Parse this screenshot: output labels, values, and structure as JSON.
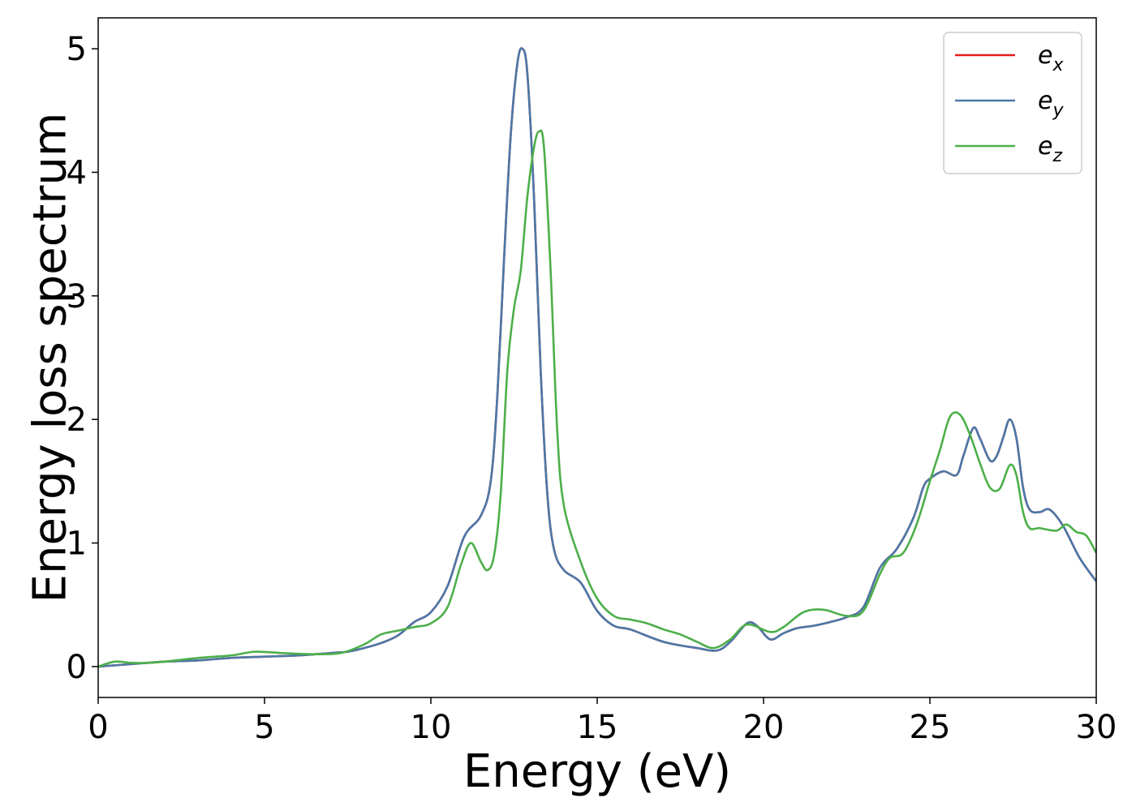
{
  "chart_data": {
    "type": "line",
    "title": "",
    "xlabel": "Energy (eV)",
    "ylabel": "Energy loss spectrum",
    "xlim": [
      0,
      30
    ],
    "ylim": [
      -0.25,
      5.25
    ],
    "xticks": [
      0,
      5,
      10,
      15,
      20,
      25,
      30
    ],
    "yticks": [
      0,
      1,
      2,
      3,
      4,
      5
    ],
    "grid": false,
    "legend_position": "top-right",
    "series": [
      {
        "name": "e_x",
        "legend_base": "e",
        "legend_sub": "x",
        "color": "#e41a1c",
        "points": [
          [
            0,
            0.0
          ],
          [
            1,
            0.02
          ],
          [
            2,
            0.04
          ],
          [
            3,
            0.05
          ],
          [
            4,
            0.07
          ],
          [
            5,
            0.08
          ],
          [
            6,
            0.09
          ],
          [
            7,
            0.11
          ],
          [
            7.5,
            0.12
          ],
          [
            8,
            0.15
          ],
          [
            8.5,
            0.19
          ],
          [
            9,
            0.25
          ],
          [
            9.5,
            0.36
          ],
          [
            10,
            0.44
          ],
          [
            10.5,
            0.65
          ],
          [
            11,
            1.05
          ],
          [
            11.5,
            1.22
          ],
          [
            11.8,
            1.5
          ],
          [
            12.0,
            2.2
          ],
          [
            12.2,
            3.3
          ],
          [
            12.4,
            4.3
          ],
          [
            12.6,
            4.88
          ],
          [
            12.75,
            5.0
          ],
          [
            12.9,
            4.8
          ],
          [
            13.1,
            3.8
          ],
          [
            13.3,
            2.4
          ],
          [
            13.5,
            1.4
          ],
          [
            13.7,
            0.95
          ],
          [
            14,
            0.78
          ],
          [
            14.5,
            0.68
          ],
          [
            15,
            0.45
          ],
          [
            15.5,
            0.33
          ],
          [
            16,
            0.3
          ],
          [
            17,
            0.2
          ],
          [
            18,
            0.15
          ],
          [
            18.6,
            0.13
          ],
          [
            19,
            0.2
          ],
          [
            19.5,
            0.35
          ],
          [
            19.8,
            0.33
          ],
          [
            20.2,
            0.22
          ],
          [
            20.6,
            0.27
          ],
          [
            21,
            0.31
          ],
          [
            21.5,
            0.33
          ],
          [
            22,
            0.36
          ],
          [
            22.5,
            0.4
          ],
          [
            23,
            0.48
          ],
          [
            23.5,
            0.8
          ],
          [
            24,
            0.95
          ],
          [
            24.5,
            1.2
          ],
          [
            24.8,
            1.45
          ],
          [
            25,
            1.52
          ],
          [
            25.4,
            1.58
          ],
          [
            25.8,
            1.55
          ],
          [
            26.0,
            1.7
          ],
          [
            26.3,
            1.93
          ],
          [
            26.5,
            1.85
          ],
          [
            26.8,
            1.67
          ],
          [
            27.0,
            1.7
          ],
          [
            27.2,
            1.85
          ],
          [
            27.4,
            2.0
          ],
          [
            27.6,
            1.85
          ],
          [
            27.8,
            1.45
          ],
          [
            28.0,
            1.27
          ],
          [
            28.3,
            1.25
          ],
          [
            28.6,
            1.27
          ],
          [
            29,
            1.14
          ],
          [
            29.5,
            0.88
          ],
          [
            30,
            0.69
          ]
        ]
      },
      {
        "name": "e_y",
        "legend_base": "e",
        "legend_sub": "y",
        "color": "#4a78a8",
        "points": [
          [
            0,
            0.0
          ],
          [
            1,
            0.02
          ],
          [
            2,
            0.04
          ],
          [
            3,
            0.05
          ],
          [
            4,
            0.07
          ],
          [
            5,
            0.08
          ],
          [
            6,
            0.09
          ],
          [
            7,
            0.11
          ],
          [
            7.5,
            0.12
          ],
          [
            8,
            0.15
          ],
          [
            8.5,
            0.19
          ],
          [
            9,
            0.25
          ],
          [
            9.5,
            0.36
          ],
          [
            10,
            0.44
          ],
          [
            10.5,
            0.65
          ],
          [
            11,
            1.05
          ],
          [
            11.5,
            1.22
          ],
          [
            11.8,
            1.5
          ],
          [
            12.0,
            2.2
          ],
          [
            12.2,
            3.3
          ],
          [
            12.4,
            4.3
          ],
          [
            12.6,
            4.88
          ],
          [
            12.75,
            5.0
          ],
          [
            12.9,
            4.8
          ],
          [
            13.1,
            3.8
          ],
          [
            13.3,
            2.4
          ],
          [
            13.5,
            1.4
          ],
          [
            13.7,
            0.95
          ],
          [
            14,
            0.78
          ],
          [
            14.5,
            0.68
          ],
          [
            15,
            0.45
          ],
          [
            15.5,
            0.33
          ],
          [
            16,
            0.3
          ],
          [
            17,
            0.2
          ],
          [
            18,
            0.15
          ],
          [
            18.6,
            0.13
          ],
          [
            19,
            0.2
          ],
          [
            19.5,
            0.35
          ],
          [
            19.8,
            0.33
          ],
          [
            20.2,
            0.22
          ],
          [
            20.6,
            0.27
          ],
          [
            21,
            0.31
          ],
          [
            21.5,
            0.33
          ],
          [
            22,
            0.36
          ],
          [
            22.5,
            0.4
          ],
          [
            23,
            0.48
          ],
          [
            23.5,
            0.8
          ],
          [
            24,
            0.95
          ],
          [
            24.5,
            1.2
          ],
          [
            24.8,
            1.45
          ],
          [
            25,
            1.52
          ],
          [
            25.4,
            1.58
          ],
          [
            25.8,
            1.55
          ],
          [
            26.0,
            1.7
          ],
          [
            26.3,
            1.93
          ],
          [
            26.5,
            1.85
          ],
          [
            26.8,
            1.67
          ],
          [
            27.0,
            1.7
          ],
          [
            27.2,
            1.85
          ],
          [
            27.4,
            2.0
          ],
          [
            27.6,
            1.85
          ],
          [
            27.8,
            1.45
          ],
          [
            28.0,
            1.27
          ],
          [
            28.3,
            1.25
          ],
          [
            28.6,
            1.27
          ],
          [
            29,
            1.14
          ],
          [
            29.5,
            0.88
          ],
          [
            30,
            0.69
          ]
        ]
      },
      {
        "name": "e_z",
        "legend_base": "e",
        "legend_sub": "z",
        "color": "#4daf4a",
        "points": [
          [
            0,
            0.0
          ],
          [
            0.5,
            0.04
          ],
          [
            1,
            0.03
          ],
          [
            1.5,
            0.03
          ],
          [
            2,
            0.04
          ],
          [
            3,
            0.07
          ],
          [
            4,
            0.09
          ],
          [
            4.7,
            0.12
          ],
          [
            5.5,
            0.11
          ],
          [
            6.5,
            0.1
          ],
          [
            7.3,
            0.11
          ],
          [
            8,
            0.18
          ],
          [
            8.5,
            0.26
          ],
          [
            9,
            0.29
          ],
          [
            9.5,
            0.32
          ],
          [
            10,
            0.35
          ],
          [
            10.5,
            0.48
          ],
          [
            10.9,
            0.82
          ],
          [
            11.2,
            1.0
          ],
          [
            11.5,
            0.85
          ],
          [
            11.7,
            0.78
          ],
          [
            11.9,
            0.9
          ],
          [
            12.1,
            1.4
          ],
          [
            12.3,
            2.4
          ],
          [
            12.5,
            2.9
          ],
          [
            12.7,
            3.2
          ],
          [
            12.9,
            3.8
          ],
          [
            13.1,
            4.2
          ],
          [
            13.25,
            4.33
          ],
          [
            13.4,
            4.2
          ],
          [
            13.6,
            3.2
          ],
          [
            13.8,
            1.9
          ],
          [
            14,
            1.3
          ],
          [
            14.5,
            0.85
          ],
          [
            15,
            0.55
          ],
          [
            15.5,
            0.41
          ],
          [
            16,
            0.38
          ],
          [
            16.5,
            0.35
          ],
          [
            17,
            0.3
          ],
          [
            17.5,
            0.26
          ],
          [
            18,
            0.2
          ],
          [
            18.5,
            0.15
          ],
          [
            19,
            0.22
          ],
          [
            19.5,
            0.34
          ],
          [
            20.2,
            0.28
          ],
          [
            20.6,
            0.32
          ],
          [
            21.2,
            0.44
          ],
          [
            21.8,
            0.46
          ],
          [
            22.5,
            0.41
          ],
          [
            23,
            0.45
          ],
          [
            23.5,
            0.75
          ],
          [
            23.8,
            0.88
          ],
          [
            24.2,
            0.92
          ],
          [
            24.6,
            1.15
          ],
          [
            25,
            1.5
          ],
          [
            25.3,
            1.75
          ],
          [
            25.6,
            2.02
          ],
          [
            25.9,
            2.04
          ],
          [
            26.2,
            1.88
          ],
          [
            26.5,
            1.65
          ],
          [
            26.8,
            1.45
          ],
          [
            27.1,
            1.44
          ],
          [
            27.4,
            1.63
          ],
          [
            27.6,
            1.55
          ],
          [
            27.8,
            1.25
          ],
          [
            28.0,
            1.12
          ],
          [
            28.3,
            1.12
          ],
          [
            28.8,
            1.1
          ],
          [
            29.1,
            1.15
          ],
          [
            29.4,
            1.09
          ],
          [
            29.7,
            1.06
          ],
          [
            30,
            0.92
          ]
        ]
      }
    ]
  }
}
